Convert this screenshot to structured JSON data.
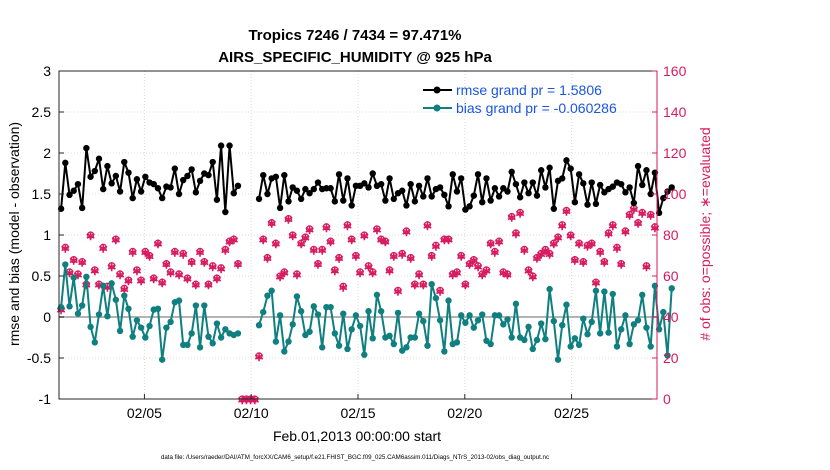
{
  "colors": {
    "rmse": "#000000",
    "bias": "#0f7f7f",
    "obs": "#d81b60",
    "zero_line": "#b3b3b3",
    "legend_text": "#1a56e0",
    "axis": "#262626"
  },
  "chart_data": {
    "type": "line",
    "title": "Tropics 7246 / 7434 = 97.471%",
    "subtitle": "AIRS_SPECIFIC_HUMIDITY @ 925 hPa",
    "xlabel": "Feb.01,2013 00:00:00 start",
    "ylabel": "rmse and bias (model - observation)",
    "y2label": "# of obs: o=possible; ∗=evaluated",
    "footer": "data file: /Users/raeder/DAI/ATM_forcXX/CAM6_setup/f.e21.FHIST_BGC.f09_025.CAM6assim.011/Diags_NTrS_2013-02/obs_diag_output.nc",
    "xlim": [
      1,
      29
    ],
    "ylim": [
      -1,
      3
    ],
    "y2lim": [
      0,
      160
    ],
    "yticks": [
      -1,
      -0.5,
      0,
      0.5,
      1,
      1.5,
      2,
      2.5,
      3
    ],
    "ytick_labels": [
      "-1",
      "-0.5",
      "0",
      "0.5",
      "1",
      "1.5",
      "2",
      "2.5",
      "3"
    ],
    "y2ticks": [
      0,
      20,
      40,
      60,
      80,
      100,
      120,
      140,
      160
    ],
    "y2tick_labels": [
      "0",
      "20",
      "40",
      "60",
      "80",
      "100",
      "120",
      "140",
      "160"
    ],
    "xticks": [
      5,
      10,
      15,
      20,
      25
    ],
    "xtick_labels": [
      "02/05",
      "02/10",
      "02/15",
      "02/20",
      "02/25"
    ],
    "grid": true,
    "legend_position": "top-right",
    "series": [
      {
        "name": "rmse grand pr = 1.5806",
        "axis": "left",
        "values": [
          1.32,
          1.88,
          1.49,
          1.54,
          1.62,
          1.33,
          2.06,
          1.71,
          1.78,
          1.93,
          1.56,
          1.84,
          1.63,
          1.72,
          1.53,
          1.89,
          1.76,
          1.45,
          1.68,
          1.53,
          1.71,
          1.64,
          1.62,
          1.57,
          1.45,
          1.59,
          1.58,
          1.81,
          1.5,
          1.67,
          1.72,
          1.8,
          1.52,
          1.66,
          1.75,
          1.73,
          1.89,
          1.43,
          2.09,
          1.28,
          2.09,
          1.51,
          1.6,
          null,
          null,
          null,
          null,
          1.44,
          1.73,
          1.5,
          1.69,
          1.71,
          1.33,
          1.73,
          1.41,
          1.58,
          1.54,
          1.44,
          1.56,
          1.51,
          1.56,
          1.64,
          1.56,
          1.57,
          1.57,
          1.41,
          1.74,
          1.42,
          1.69,
          1.36,
          1.6,
          1.6,
          1.63,
          1.58,
          1.75,
          1.6,
          1.62,
          1.42,
          1.69,
          1.44,
          1.51,
          1.54,
          1.36,
          1.62,
          1.41,
          1.6,
          1.47,
          1.69,
          1.47,
          1.56,
          1.58,
          1.49,
          1.35,
          1.74,
          1.53,
          1.69,
          1.31,
          1.35,
          1.48,
          1.74,
          1.4,
          1.69,
          1.42,
          1.57,
          1.47,
          1.57,
          1.53,
          1.77,
          1.62,
          1.46,
          1.64,
          1.51,
          1.64,
          1.48,
          1.79,
          1.58,
          1.82,
          1.32,
          1.66,
          1.69,
          1.91,
          1.81,
          1.4,
          1.74,
          1.63,
          1.37,
          1.64,
          1.38,
          1.61,
          1.52,
          1.56,
          1.59,
          1.64,
          1.62,
          1.52,
          1.58,
          1.39,
          1.84,
          1.61,
          1.79,
          1.5,
          1.76,
          1.27,
          1.45,
          1.53,
          1.58
        ]
      },
      {
        "name": "bias grand pr = -0.060286",
        "axis": "left",
        "values": [
          0.12,
          0.64,
          0.13,
          0.48,
          0.04,
          0.14,
          0.49,
          -0.12,
          -0.31,
          0.03,
          0.38,
          0.01,
          0.41,
          0.21,
          -0.17,
          0.26,
          0.1,
          -0.24,
          -0.04,
          -0.13,
          -0.25,
          -0.11,
          0.09,
          0.1,
          -0.52,
          -0.13,
          -0.06,
          0.18,
          0.2,
          -0.34,
          -0.34,
          -0.2,
          0.14,
          -0.37,
          0.14,
          -0.24,
          -0.32,
          -0.08,
          -0.25,
          -0.15,
          -0.2,
          -0.22,
          -0.2,
          null,
          null,
          null,
          null,
          -0.1,
          0.06,
          0.26,
          0.32,
          -0.3,
          0.02,
          -0.42,
          -0.3,
          -0.09,
          0.25,
          0.07,
          -0.22,
          -0.18,
          0.13,
          0.03,
          -0.37,
          0.12,
          0.12,
          -0.2,
          -0.35,
          0.04,
          -0.39,
          -0.15,
          0.02,
          -0.11,
          -0.46,
          0.07,
          -0.26,
          0.27,
          0.07,
          -0.25,
          -0.23,
          -0.33,
          0.05,
          -0.41,
          -0.37,
          -0.25,
          -0.25,
          0.04,
          -0.05,
          -0.35,
          0.4,
          0.23,
          -0.04,
          -0.42,
          0.2,
          -0.33,
          -0.31,
          0.02,
          -0.07,
          0.02,
          -0.13,
          -0.04,
          0.03,
          -0.29,
          -0.33,
          0.02,
          0.02,
          -0.09,
          -0.03,
          -0.25,
          0.16,
          -0.25,
          -0.28,
          -0.12,
          -0.39,
          -0.28,
          -0.08,
          -0.27,
          0.34,
          -0.05,
          -0.52,
          -0.1,
          0.15,
          -0.36,
          -0.26,
          -0.34,
          -0.02,
          -0.21,
          -0.06,
          0.32,
          -0.2,
          0.31,
          -0.19,
          0.28,
          -0.36,
          -0.15,
          0.02,
          -0.33,
          -0.09,
          -0.04,
          0.27,
          -0.13,
          -0.36,
          0.38,
          -0.15,
          0.06,
          -0.47,
          0.35
        ]
      }
    ],
    "obs_possible": [
      44,
      74,
      62,
      68,
      61,
      67,
      56,
      80,
      63,
      56,
      74,
      55,
      65,
      78,
      61,
      54,
      58,
      72,
      63,
      58,
      72,
      70,
      59,
      76,
      57,
      66,
      62,
      72,
      61,
      71,
      59,
      67,
      56,
      72,
      67,
      56,
      65,
      59,
      64,
      73,
      77,
      78,
      66,
      0,
      0,
      0,
      0,
      21,
      78,
      69,
      86,
      76,
      60,
      62,
      88,
      80,
      61,
      76,
      79,
      83,
      73,
      66,
      73,
      84,
      77,
      63,
      69,
      55,
      85,
      78,
      70,
      62,
      80,
      65,
      62,
      83,
      78,
      77,
      63,
      70,
      53,
      71,
      82,
      69,
      56,
      61,
      56,
      85,
      70,
      75,
      53,
      78,
      78,
      61,
      62,
      70,
      56,
      66,
      68,
      65,
      61,
      63,
      76,
      72,
      77,
      62,
      61,
      89,
      81,
      91,
      73,
      63,
      60,
      69,
      71,
      73,
      71,
      76,
      79,
      85,
      92,
      80,
      68,
      76,
      67,
      75,
      76,
      57,
      72,
      67,
      81,
      85,
      74,
      66,
      82,
      90,
      93,
      86,
      91,
      65,
      90,
      84
    ]
  }
}
